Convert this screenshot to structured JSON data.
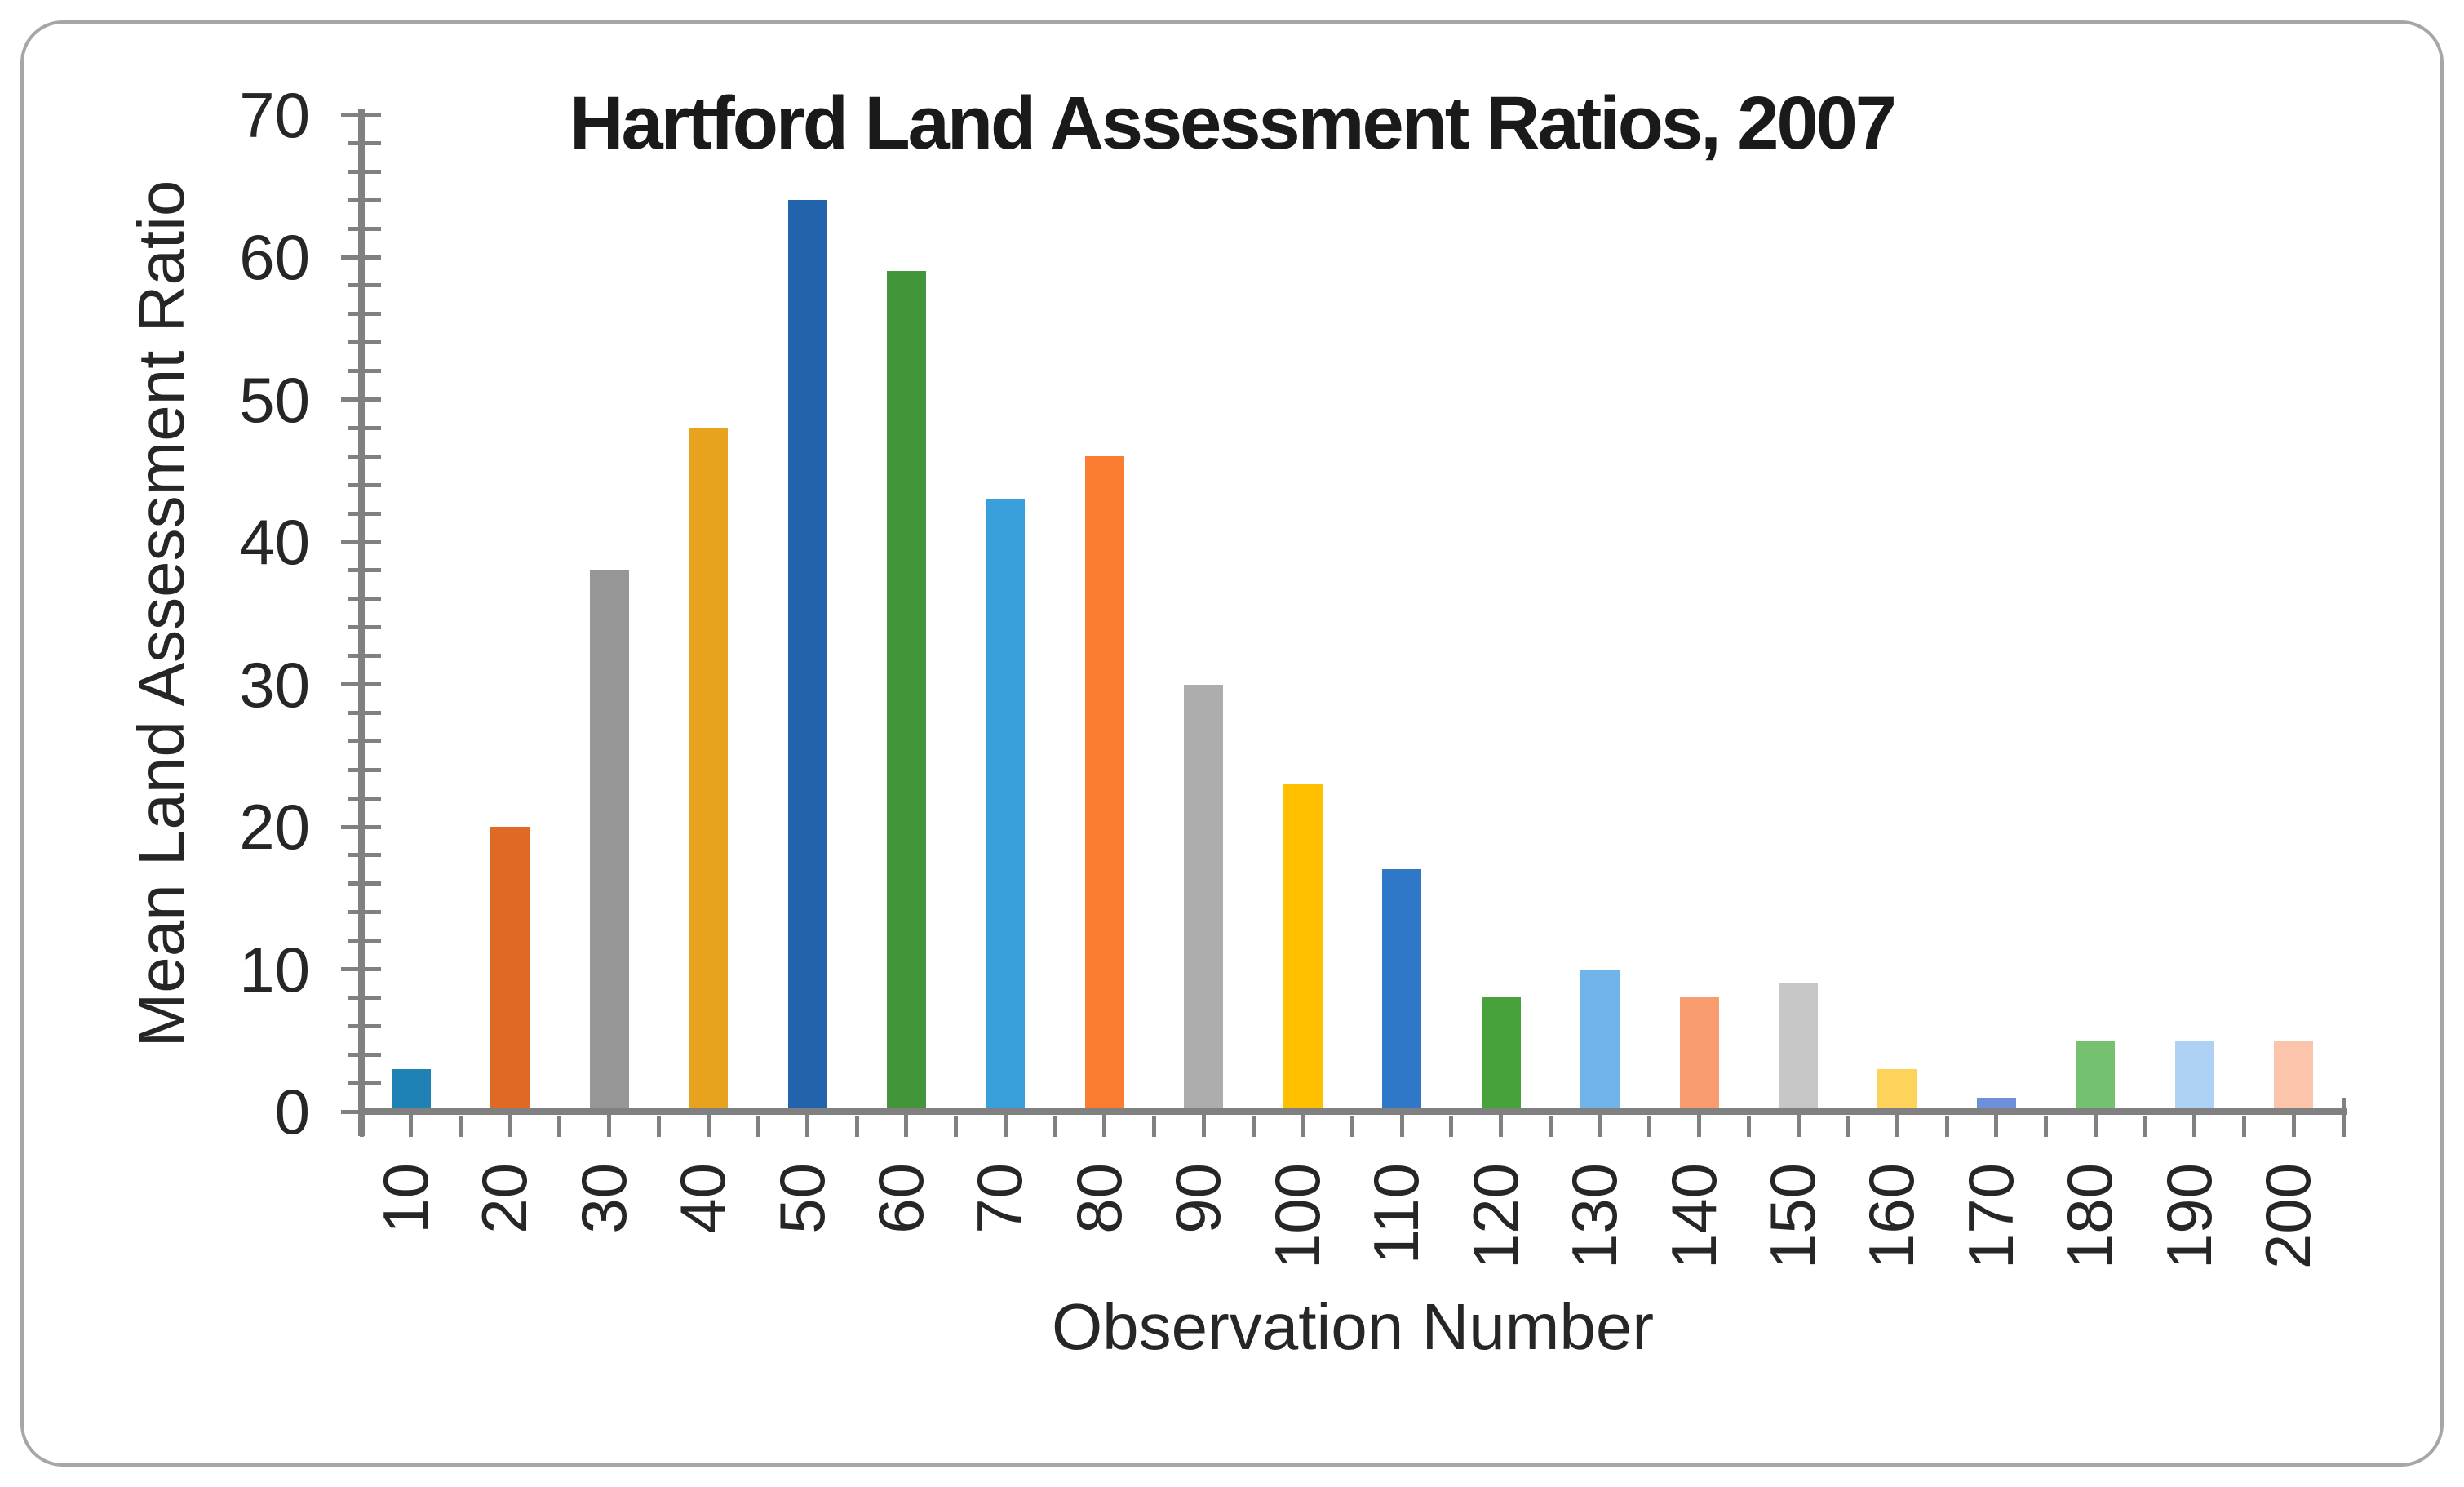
{
  "chart_data": {
    "type": "bar",
    "title": "Hartford Land Assessment Ratios, 2007",
    "xlabel": "Observation Number",
    "ylabel": "Mean Land Assessment Ratio",
    "categories": [
      "10",
      "20",
      "30",
      "40",
      "50",
      "60",
      "70",
      "80",
      "90",
      "100",
      "110",
      "120",
      "130",
      "140",
      "150",
      "160",
      "170",
      "180",
      "190",
      "200"
    ],
    "values": [
      3,
      20,
      38,
      48,
      64,
      59,
      43,
      46,
      30,
      23,
      17,
      8,
      10,
      8,
      9,
      3,
      1,
      5,
      5,
      5
    ],
    "bar_colors": [
      "#2081B5",
      "#DE6A26",
      "#969696",
      "#E7A21E",
      "#2164AC",
      "#43953B",
      "#399FDB",
      "#FA7D32",
      "#ADADAD",
      "#FFC000",
      "#2F78C8",
      "#48A23C",
      "#70B3E8",
      "#F99C6E",
      "#C7C7C7",
      "#FED35C",
      "#6E90DB",
      "#76C170",
      "#AED2F5",
      "#FBC4AB"
    ],
    "ylim": [
      0,
      70
    ],
    "y_major_step": 10,
    "y_minor_step": 2,
    "grid": false,
    "legend": false,
    "axis_color": "#808080",
    "text_color": "#262626",
    "frame_border_color": "#A6A6A6",
    "background": "#FFFFFF"
  }
}
